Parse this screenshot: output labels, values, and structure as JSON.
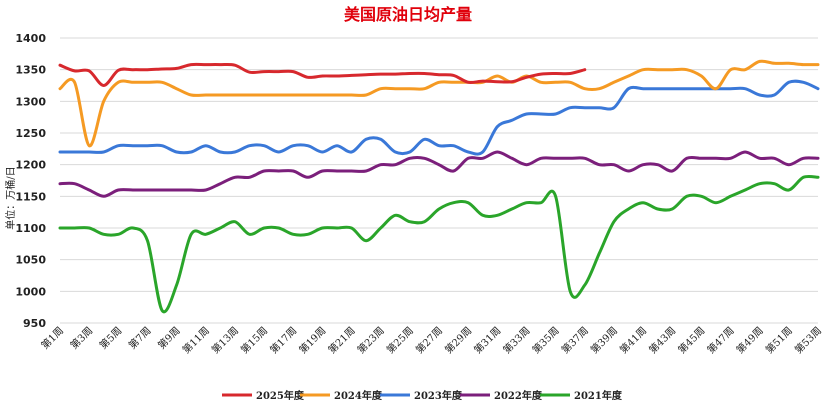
{
  "chart_data": {
    "type": "line",
    "title": "美国原油日均产量",
    "ylabel": "单位：万桶/日",
    "ylim": [
      950,
      1400
    ],
    "yticks": [
      950,
      1000,
      1050,
      1100,
      1150,
      1200,
      1250,
      1300,
      1350,
      1400
    ],
    "grid": true,
    "legend_position": "bottom",
    "x_tick_labels": [
      "第1周",
      "第3周",
      "第5周",
      "第7周",
      "第9周",
      "第11周",
      "第13周",
      "第15周",
      "第17周",
      "第19周",
      "第21周",
      "第23周",
      "第25周",
      "第27周",
      "第29周",
      "第31周",
      "第33周",
      "第35周",
      "第37周",
      "第39周",
      "第41周",
      "第43周",
      "第45周",
      "第47周",
      "第49周",
      "第51周",
      "第53周"
    ],
    "x_range": [
      1,
      53
    ],
    "series": [
      {
        "name": "2025年度",
        "color": "#d7282d",
        "x": [
          1,
          2,
          3,
          4,
          5,
          6,
          7,
          8,
          9,
          10,
          11,
          12,
          13,
          14,
          15,
          16,
          17,
          18,
          19,
          20,
          21,
          22,
          23,
          24,
          25,
          26,
          27,
          28,
          29,
          30,
          31,
          32,
          33,
          34,
          35,
          36,
          37
        ],
        "values": [
          1357,
          1348,
          1348,
          1325,
          1349,
          1350,
          1350,
          1351,
          1352,
          1358,
          1358,
          1358,
          1357,
          1346,
          1347,
          1347,
          1347,
          1338,
          1340,
          1340,
          1341,
          1342,
          1343,
          1343,
          1344,
          1344,
          1342,
          1341,
          1330,
          1332,
          1331,
          1331,
          1338,
          1343,
          1344,
          1344,
          1350
        ]
      },
      {
        "name": "2024年度",
        "color": "#f59a23",
        "x": [
          1,
          2,
          3,
          4,
          5,
          6,
          7,
          8,
          9,
          10,
          11,
          12,
          13,
          14,
          15,
          16,
          17,
          18,
          19,
          20,
          21,
          22,
          23,
          24,
          25,
          26,
          27,
          28,
          29,
          30,
          31,
          32,
          33,
          34,
          35,
          36,
          37,
          38,
          39,
          40,
          41,
          42,
          43,
          44,
          45,
          46,
          47,
          48,
          49,
          50,
          51,
          52,
          53
        ],
        "values": [
          1320,
          1330,
          1230,
          1300,
          1330,
          1330,
          1330,
          1330,
          1320,
          1310,
          1310,
          1310,
          1310,
          1310,
          1310,
          1310,
          1310,
          1310,
          1310,
          1310,
          1310,
          1310,
          1320,
          1320,
          1320,
          1320,
          1330,
          1330,
          1330,
          1330,
          1340,
          1330,
          1340,
          1330,
          1330,
          1330,
          1320,
          1320,
          1330,
          1340,
          1350,
          1350,
          1350,
          1350,
          1340,
          1320,
          1350,
          1350,
          1363,
          1360,
          1360,
          1358,
          1358
        ]
      },
      {
        "name": "2023年度",
        "color": "#3a78d8",
        "x": [
          1,
          2,
          3,
          4,
          5,
          6,
          7,
          8,
          9,
          10,
          11,
          12,
          13,
          14,
          15,
          16,
          17,
          18,
          19,
          20,
          21,
          22,
          23,
          24,
          25,
          26,
          27,
          28,
          29,
          30,
          31,
          32,
          33,
          34,
          35,
          36,
          37,
          38,
          39,
          40,
          41,
          42,
          43,
          44,
          45,
          46,
          47,
          48,
          49,
          50,
          51,
          52,
          53
        ],
        "values": [
          1220,
          1220,
          1220,
          1220,
          1230,
          1230,
          1230,
          1230,
          1220,
          1220,
          1230,
          1220,
          1220,
          1230,
          1230,
          1220,
          1230,
          1230,
          1220,
          1230,
          1220,
          1240,
          1240,
          1220,
          1220,
          1240,
          1230,
          1230,
          1220,
          1220,
          1260,
          1270,
          1280,
          1280,
          1280,
          1290,
          1290,
          1290,
          1290,
          1320,
          1320,
          1320,
          1320,
          1320,
          1320,
          1320,
          1320,
          1320,
          1310,
          1310,
          1330,
          1330,
          1320
        ]
      },
      {
        "name": "2022年度",
        "color": "#7b1f7b",
        "x": [
          1,
          2,
          3,
          4,
          5,
          6,
          7,
          8,
          9,
          10,
          11,
          12,
          13,
          14,
          15,
          16,
          17,
          18,
          19,
          20,
          21,
          22,
          23,
          24,
          25,
          26,
          27,
          28,
          29,
          30,
          31,
          32,
          33,
          34,
          35,
          36,
          37,
          38,
          39,
          40,
          41,
          42,
          43,
          44,
          45,
          46,
          47,
          48,
          49,
          50,
          51,
          52,
          53
        ],
        "values": [
          1170,
          1170,
          1160,
          1150,
          1160,
          1160,
          1160,
          1160,
          1160,
          1160,
          1160,
          1170,
          1180,
          1180,
          1190,
          1190,
          1190,
          1180,
          1190,
          1190,
          1190,
          1190,
          1200,
          1200,
          1210,
          1210,
          1200,
          1190,
          1210,
          1210,
          1220,
          1210,
          1200,
          1210,
          1210,
          1210,
          1210,
          1200,
          1200,
          1190,
          1200,
          1200,
          1190,
          1210,
          1210,
          1210,
          1210,
          1220,
          1210,
          1210,
          1200,
          1210,
          1210
        ]
      },
      {
        "name": "2021年度",
        "color": "#2aa52a",
        "x": [
          1,
          2,
          3,
          4,
          5,
          6,
          7,
          8,
          9,
          10,
          11,
          12,
          13,
          14,
          15,
          16,
          17,
          18,
          19,
          20,
          21,
          22,
          23,
          24,
          25,
          26,
          27,
          28,
          29,
          30,
          31,
          32,
          33,
          34,
          35,
          36,
          37,
          38,
          39,
          40,
          41,
          42,
          43,
          44,
          45,
          46,
          47,
          48,
          49,
          50,
          51,
          52,
          53
        ],
        "values": [
          1100,
          1100,
          1100,
          1090,
          1090,
          1100,
          1080,
          970,
          1010,
          1090,
          1090,
          1100,
          1110,
          1090,
          1100,
          1100,
          1090,
          1090,
          1100,
          1100,
          1100,
          1080,
          1100,
          1120,
          1110,
          1110,
          1130,
          1140,
          1140,
          1120,
          1120,
          1130,
          1140,
          1140,
          1150,
          1000,
          1010,
          1060,
          1110,
          1130,
          1140,
          1130,
          1130,
          1150,
          1150,
          1140,
          1150,
          1160,
          1170,
          1170,
          1160,
          1180,
          1180
        ]
      }
    ]
  }
}
